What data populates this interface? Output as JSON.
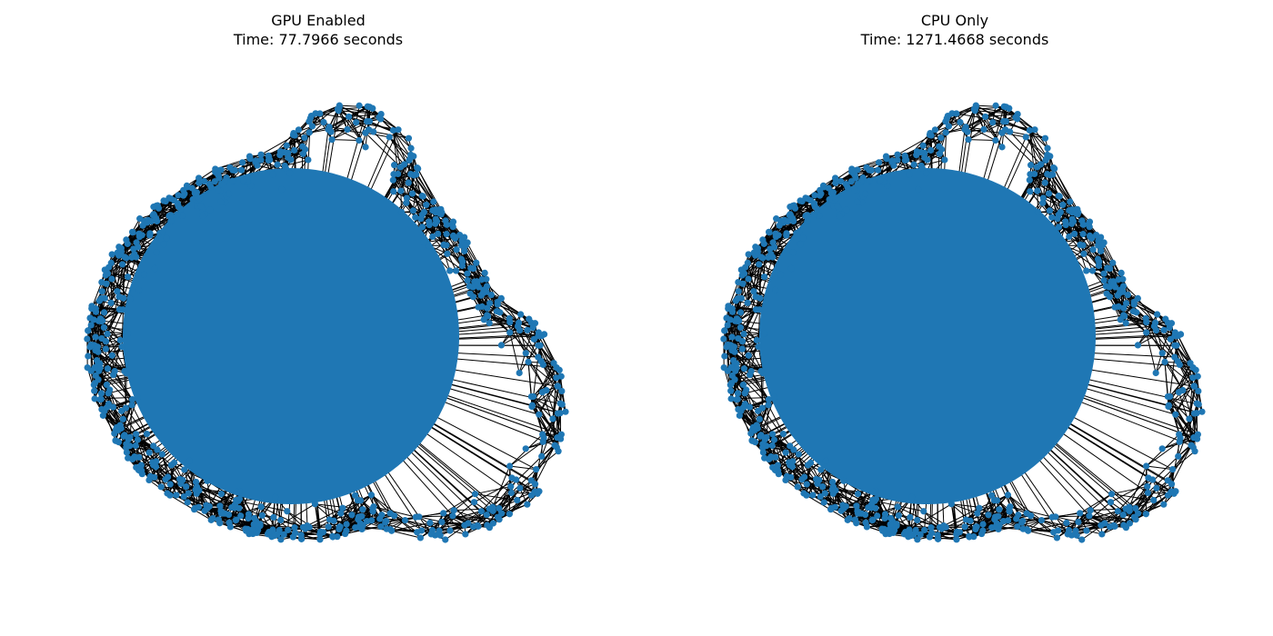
{
  "figure": {
    "panels": [
      {
        "title": "GPU Enabled",
        "subtitle": "Time: 77.7966 seconds"
      },
      {
        "title": "CPU Only",
        "subtitle": "Time: 1271.4668 seconds"
      }
    ]
  },
  "colors": {
    "node": "#1f77b4",
    "edge": "#000000",
    "background": "#ffffff"
  }
}
